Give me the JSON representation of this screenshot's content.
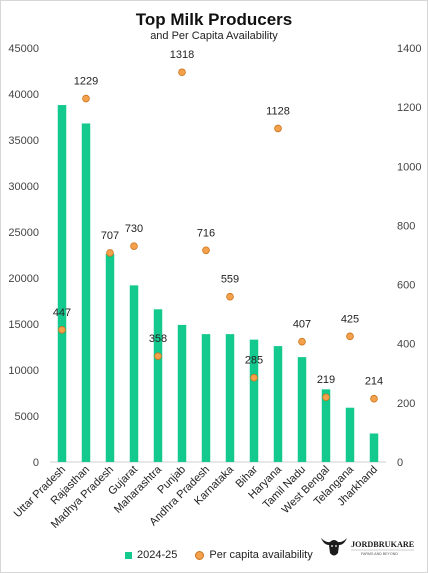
{
  "chart_data": {
    "type": "bar",
    "title": "Top Milk Producers",
    "subtitle": "and Per Capita Availability",
    "categories": [
      "Uttar Pradesh",
      "Rajasthan",
      "Madhya Pradesh",
      "Gujarat",
      "Maharashtra",
      "Punjab",
      "Andhra Pradesh",
      "Karnataka",
      "Bihar",
      "Haryana",
      "Tamil Nadu",
      "West Bengal",
      "Telangana",
      "Jharkhand"
    ],
    "series": [
      {
        "name": "2024-25",
        "type": "bar",
        "axis": "left",
        "color": "#14c98e",
        "values": [
          38800,
          36800,
          22600,
          19200,
          16600,
          14900,
          13900,
          13900,
          13300,
          12600,
          11400,
          7900,
          5900,
          3100
        ]
      },
      {
        "name": "Per capita availability",
        "type": "scatter",
        "axis": "right",
        "color": "#f5a04a",
        "values": [
          447,
          1229,
          707,
          730,
          358,
          1318,
          716,
          559,
          285,
          1128,
          407,
          219,
          425,
          214
        ],
        "labels": [
          "447",
          "1229",
          "707",
          "730",
          "358",
          "1318",
          "716",
          "559",
          "285",
          "1128",
          "407",
          "219",
          "425",
          "214"
        ]
      }
    ],
    "y_left": {
      "ylim": [
        0,
        45000
      ],
      "ticks": [
        "0",
        "5000",
        "10000",
        "15000",
        "20000",
        "25000",
        "30000",
        "35000",
        "40000",
        "45000"
      ]
    },
    "y_right": {
      "ylim": [
        0,
        1400
      ],
      "ticks": [
        "0",
        "200",
        "400",
        "600",
        "800",
        "1000",
        "1200",
        "1400"
      ]
    },
    "grid": false,
    "legend_position": "bottom"
  },
  "logo": {
    "text": "JORDBRUKARE",
    "tagline": "FARMS AND BEYOND",
    "icon": "bull-head-icon"
  }
}
